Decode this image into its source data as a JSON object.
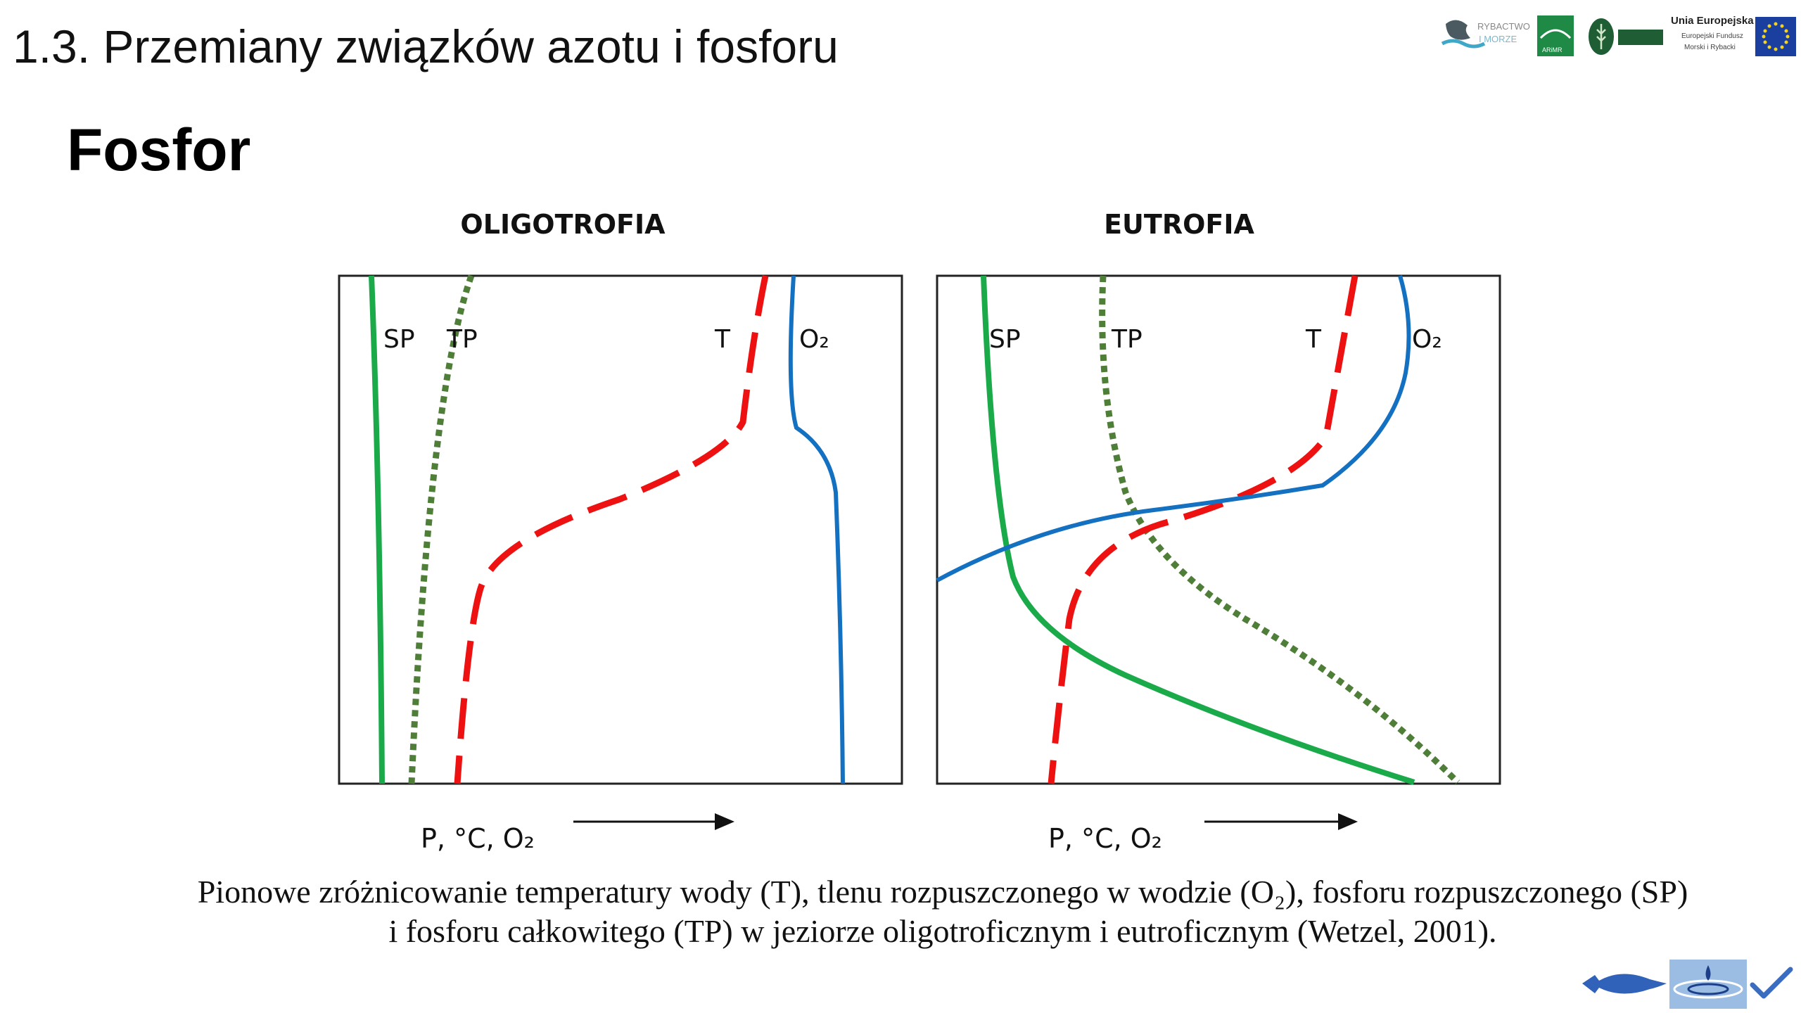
{
  "slide": {
    "title": "1.3. Przemiany związków azotu i fosforu",
    "heading": "Fosfor"
  },
  "logos": {
    "rybactwo": "RYBACTWO",
    "imorze": "I MORZE",
    "arimr": "ARiMR",
    "ue_title": "Unia Europejska",
    "ue_sub1": "Europejski Fundusz",
    "ue_sub2": "Morski i Rybacki"
  },
  "diagram": {
    "panels": [
      {
        "title": "OLIGOTROFIA",
        "labels": {
          "sp": "SP",
          "tp": "TP",
          "t": "T",
          "o2": "O₂"
        },
        "axis_label": "P, °C, O₂"
      },
      {
        "title": "EUTROFIA",
        "labels": {
          "sp": "SP",
          "tp": "TP",
          "t": "T",
          "o2": "O₂"
        },
        "axis_label": "P, °C, O₂"
      }
    ],
    "colors": {
      "sp": "#1aaa4a",
      "tp": "#4f7e38",
      "t": "#ee1111",
      "o2": "#1470c0"
    }
  },
  "caption": {
    "line1": "Pionowe zróżnicowanie temperatury wody (T), tlenu rozpuszczonego w wodzie (O₂), fosforu rozpuszczonego (SP)",
    "line2": "i fosforu całkowitego (TP) w jeziorze oligotroficznym i eutroficznym (Wetzel, 2001)."
  },
  "footer": {
    "icons": [
      "fish-icon",
      "water-drop-icon",
      "checkmark-icon"
    ],
    "colors": {
      "fish": "#2f62b8",
      "check": "#3a6cc0"
    }
  }
}
